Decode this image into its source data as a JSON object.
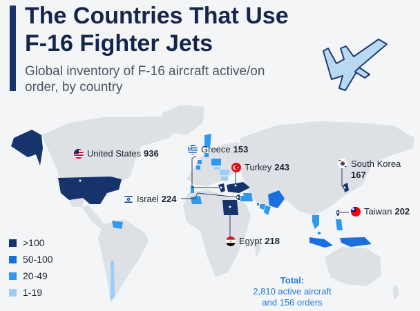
{
  "header": {
    "title": "The Countries That Use F-16 Fighter Jets",
    "subtitle": "Global inventory of F-16 aircraft active/on order, by country"
  },
  "callouts": [
    {
      "key": "us",
      "country": "United States",
      "value": "936",
      "flag_icon": "us-flag-icon"
    },
    {
      "key": "greece",
      "country": "Greece",
      "value": "153",
      "flag_icon": "greece-flag-icon"
    },
    {
      "key": "turkey",
      "country": "Turkey",
      "value": "243",
      "flag_icon": "turkey-flag-icon"
    },
    {
      "key": "skorea",
      "country": "South Korea",
      "value": "167",
      "flag_icon": "south-korea-flag-icon"
    },
    {
      "key": "israel",
      "country": "Israel",
      "value": "224",
      "flag_icon": "israel-flag-icon"
    },
    {
      "key": "taiwan",
      "country": "Taiwan",
      "value": "202",
      "flag_icon": "taiwan-flag-icon"
    },
    {
      "key": "egypt",
      "country": "Egypt",
      "value": "218",
      "flag_icon": "egypt-flag-icon"
    }
  ],
  "legend": {
    "items": [
      {
        "label": ">100",
        "color": "#16336c"
      },
      {
        "label": "50-100",
        "color": "#1a6fe0"
      },
      {
        "label": "20-49",
        "color": "#2f98ef"
      },
      {
        "label": "1-19",
        "color": "#9ccdf6"
      }
    ]
  },
  "total": {
    "label": "Total:",
    "line1": "2,810 active aircraft",
    "line2": "and 156 orders"
  },
  "colors": {
    "land": "#dde1e6",
    "title": "#16254a",
    "accent_bar": "#16336c",
    "total_text": "#1f7bd8"
  }
}
